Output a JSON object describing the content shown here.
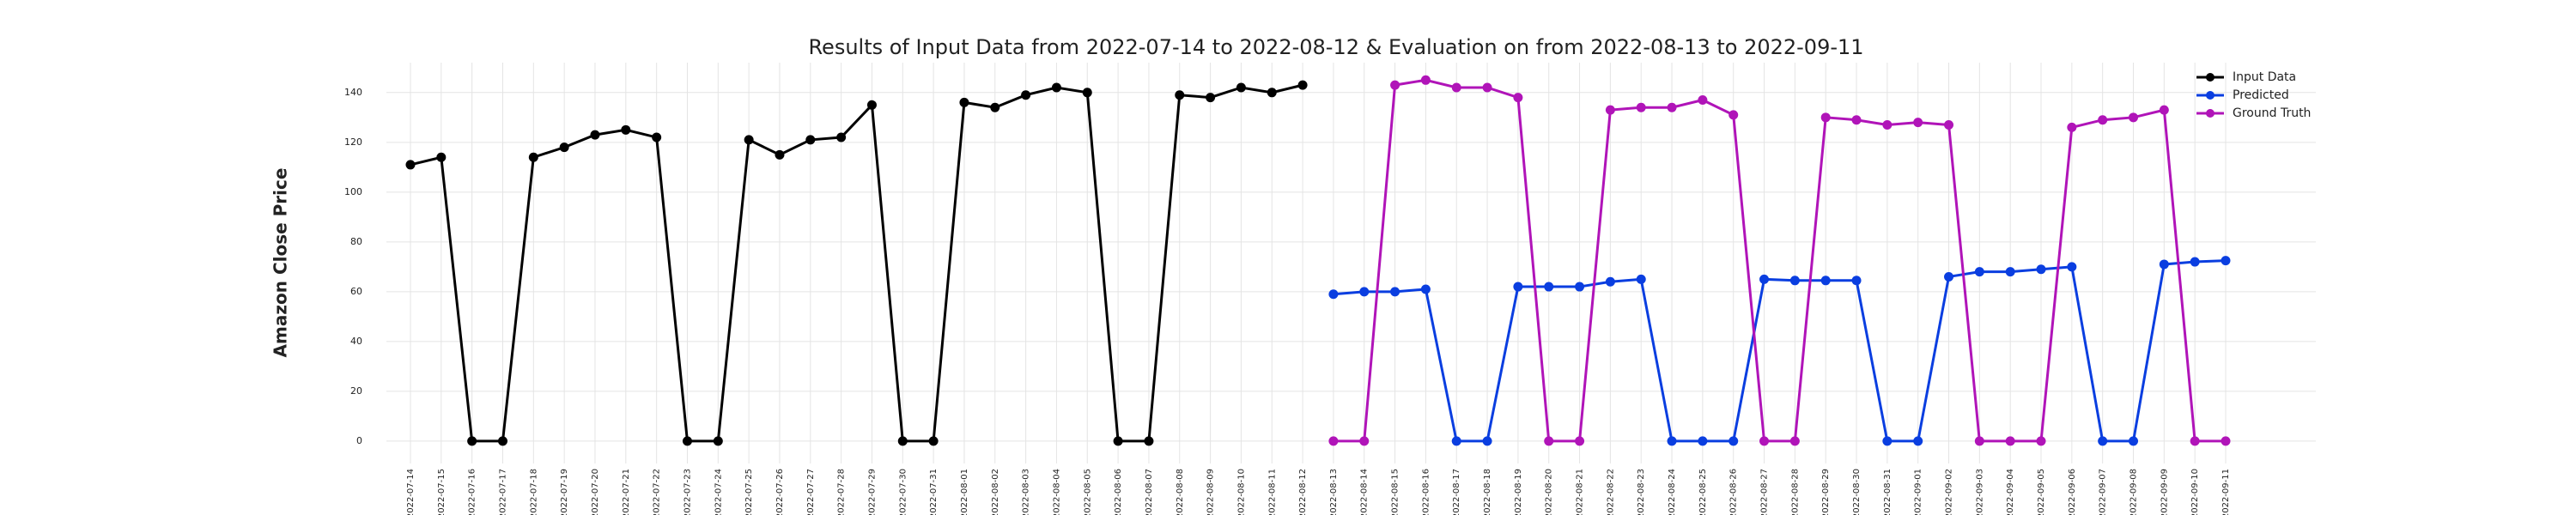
{
  "chart_data": {
    "type": "line",
    "title": "Results of Input Data from 2022-07-14 to 2022-08-12 & Evaluation on from 2022-08-13 to 2022-09-11",
    "y_label": "Amazon Close Price",
    "categories": [
      "2022-07-14",
      "2022-07-15",
      "2022-07-16",
      "2022-07-17",
      "2022-07-18",
      "2022-07-19",
      "2022-07-20",
      "2022-07-21",
      "2022-07-22",
      "2022-07-23",
      "2022-07-24",
      "2022-07-25",
      "2022-07-26",
      "2022-07-27",
      "2022-07-28",
      "2022-07-29",
      "2022-07-30",
      "2022-07-31",
      "2022-08-01",
      "2022-08-02",
      "2022-08-03",
      "2022-08-04",
      "2022-08-05",
      "2022-08-06",
      "2022-08-07",
      "2022-08-08",
      "2022-08-09",
      "2022-08-10",
      "2022-08-11",
      "2022-08-12",
      "2022-08-13",
      "2022-08-14",
      "2022-08-15",
      "2022-08-16",
      "2022-08-17",
      "2022-08-18",
      "2022-08-19",
      "2022-08-20",
      "2022-08-21",
      "2022-08-22",
      "2022-08-23",
      "2022-08-24",
      "2022-08-25",
      "2022-08-26",
      "2022-08-27",
      "2022-08-28",
      "2022-08-29",
      "2022-08-30",
      "2022-08-31",
      "2022-09-01",
      "2022-09-02",
      "2022-09-03",
      "2022-09-04",
      "2022-09-05",
      "2022-09-06",
      "2022-09-07",
      "2022-09-08",
      "2022-09-09",
      "2022-09-10",
      "2022-09-11"
    ],
    "series": [
      {
        "name": "Input Data",
        "color": "#000000",
        "values": [
          111,
          114,
          0,
          0,
          114,
          118,
          123,
          125,
          122,
          0,
          0,
          121,
          115,
          121,
          122,
          135,
          0,
          0,
          136,
          134,
          139,
          142,
          140,
          0,
          0,
          139,
          138,
          142,
          140,
          143,
          null,
          null,
          null,
          null,
          null,
          null,
          null,
          null,
          null,
          null,
          null,
          null,
          null,
          null,
          null,
          null,
          null,
          null,
          null,
          null,
          null,
          null,
          null,
          null,
          null,
          null,
          null,
          null,
          null,
          null
        ]
      },
      {
        "name": "Predicted",
        "color": "#0a3ee0",
        "values": [
          null,
          null,
          null,
          null,
          null,
          null,
          null,
          null,
          null,
          null,
          null,
          null,
          null,
          null,
          null,
          null,
          null,
          null,
          null,
          null,
          null,
          null,
          null,
          null,
          null,
          null,
          null,
          null,
          null,
          null,
          59,
          60,
          60,
          61,
          0,
          0,
          62,
          62,
          62,
          64,
          65,
          0,
          0,
          0,
          65,
          64.5,
          64.5,
          64.5,
          0,
          0,
          66,
          68,
          68,
          69,
          70,
          0,
          0,
          71,
          72,
          72.5
        ]
      },
      {
        "name": "Ground Truth",
        "color": "#b014b8",
        "values": [
          null,
          null,
          null,
          null,
          null,
          null,
          null,
          null,
          null,
          null,
          null,
          null,
          null,
          null,
          null,
          null,
          null,
          null,
          null,
          null,
          null,
          null,
          null,
          null,
          null,
          null,
          null,
          null,
          null,
          null,
          0,
          0,
          143,
          145,
          142,
          142,
          138,
          0,
          0,
          133,
          134,
          134,
          137,
          131,
          0,
          0,
          130,
          129,
          127,
          128,
          127,
          0,
          0,
          0,
          126,
          129,
          130,
          133,
          0,
          0
        ]
      }
    ],
    "ylim": [
      -9,
      152
    ],
    "yticks": [
      0,
      20,
      40,
      60,
      80,
      100,
      120,
      140
    ],
    "grid": true,
    "legend": "upper right"
  }
}
